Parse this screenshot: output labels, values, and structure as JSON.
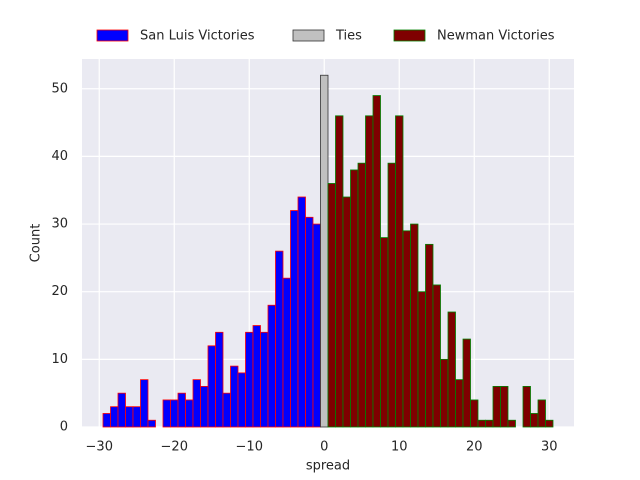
{
  "chart_data": {
    "type": "histogram",
    "xlabel": "spread",
    "ylabel": "Count",
    "series": [
      {
        "name": "San Luis Victories",
        "color": "#0000ff",
        "edgecolor": "#ff0000",
        "bins": [
          -29.5,
          -28.5,
          -27.5,
          -26.5,
          -25.5,
          -24.5,
          -23.5,
          -22.5,
          -21.5,
          -20.5,
          -19.5,
          -18.5,
          -17.5,
          -16.5,
          -15.5,
          -14.5,
          -13.5,
          -12.5,
          -11.5,
          -10.5,
          -9.5,
          -8.5,
          -7.5,
          -6.5,
          -5.5,
          -4.5,
          -3.5,
          -2.5,
          -1.5,
          -0.5
        ],
        "values": [
          2,
          3,
          5,
          3,
          3,
          7,
          1,
          0,
          4,
          4,
          5,
          4,
          7,
          6,
          12,
          14,
          5,
          9,
          8,
          14,
          15,
          14,
          18,
          26,
          22,
          32,
          34,
          31,
          30
        ]
      },
      {
        "name": "Ties",
        "color": "#c0c0c0",
        "edgecolor": "#333333",
        "bins": [
          -0.5,
          0.5
        ],
        "values": [
          52
        ]
      },
      {
        "name": "Newman Victories",
        "color": "#7f0000",
        "edgecolor": "#008000",
        "bins": [
          0.5,
          1.5,
          2.5,
          3.5,
          4.5,
          5.5,
          6.5,
          7.5,
          8.5,
          9.5,
          10.5,
          11.5,
          12.5,
          13.5,
          14.5,
          15.5,
          16.5,
          17.5,
          18.5,
          19.5,
          20.5,
          21.5,
          22.5,
          23.5,
          24.5,
          25.5,
          26.5,
          27.5,
          28.5,
          29.5,
          30.5
        ],
        "values": [
          36,
          46,
          34,
          38,
          39,
          46,
          49,
          28,
          39,
          46,
          29,
          30,
          20,
          27,
          21,
          10,
          17,
          7,
          13,
          4,
          1,
          1,
          6,
          6,
          1,
          0,
          6,
          2,
          4,
          1
        ]
      }
    ],
    "xlim": [
      -32.3,
      33.3
    ],
    "ylim": [
      0,
      54.4
    ],
    "xticks": [
      {
        "value": -30,
        "label": "−30"
      },
      {
        "value": -20,
        "label": "−20"
      },
      {
        "value": -10,
        "label": "−10"
      },
      0,
      10,
      20,
      30
    ],
    "yticks": [
      0,
      10,
      20,
      30,
      40,
      50
    ],
    "grid": true,
    "legend": "upper center outside"
  }
}
